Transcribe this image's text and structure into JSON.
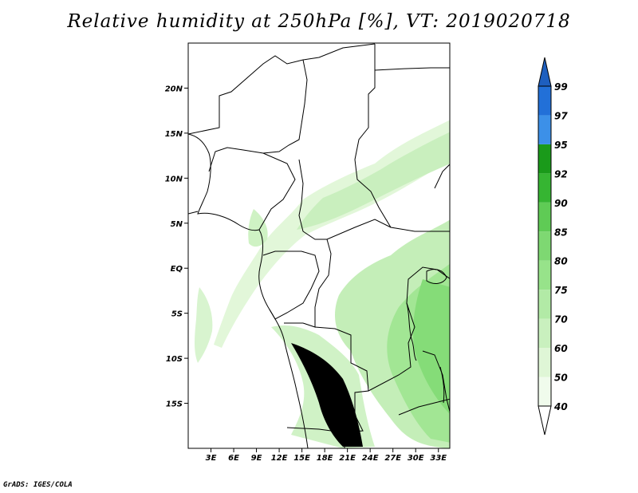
{
  "title": "Relative humidity at 250hPa [%], VT: 2019020718",
  "credit": "GrADS: IGES/COLA",
  "map": {
    "lon_range": [
      0,
      34.5
    ],
    "lat_range": [
      -20,
      25
    ],
    "lat_ticks": [
      {
        "value": 20,
        "label": "20N"
      },
      {
        "value": 15,
        "label": "15N"
      },
      {
        "value": 10,
        "label": "10N"
      },
      {
        "value": 5,
        "label": "5N"
      },
      {
        "value": 0,
        "label": "EQ"
      },
      {
        "value": -5,
        "label": "5S"
      },
      {
        "value": -10,
        "label": "10S"
      },
      {
        "value": -15,
        "label": "15S"
      }
    ],
    "lon_ticks": [
      {
        "value": 3,
        "label": "3E"
      },
      {
        "value": 6,
        "label": "6E"
      },
      {
        "value": 9,
        "label": "9E"
      },
      {
        "value": 12,
        "label": "12E"
      },
      {
        "value": 15,
        "label": "15E"
      },
      {
        "value": 18,
        "label": "18E"
      },
      {
        "value": 21,
        "label": "21E"
      },
      {
        "value": 24,
        "label": "24E"
      },
      {
        "value": 27,
        "label": "27E"
      },
      {
        "value": 30,
        "label": "30E"
      },
      {
        "value": 33,
        "label": "33E"
      }
    ]
  },
  "colorbar": {
    "levels": [
      {
        "label": "40",
        "color": "#f0fbec"
      },
      {
        "label": "50",
        "color": "#dff6d6"
      },
      {
        "label": "60",
        "color": "#c9f0be"
      },
      {
        "label": "70",
        "color": "#b2eaa6"
      },
      {
        "label": "75",
        "color": "#97e38a"
      },
      {
        "label": "80",
        "color": "#7ed872"
      },
      {
        "label": "85",
        "color": "#5fcb55"
      },
      {
        "label": "90",
        "color": "#36b532"
      },
      {
        "label": "92",
        "color": "#1a9a1a"
      },
      {
        "label": "95",
        "color": "#3c90e8"
      },
      {
        "label": "97",
        "color": "#2270d8"
      },
      {
        "label": "99",
        "color": "#1e5fbf"
      }
    ]
  }
}
